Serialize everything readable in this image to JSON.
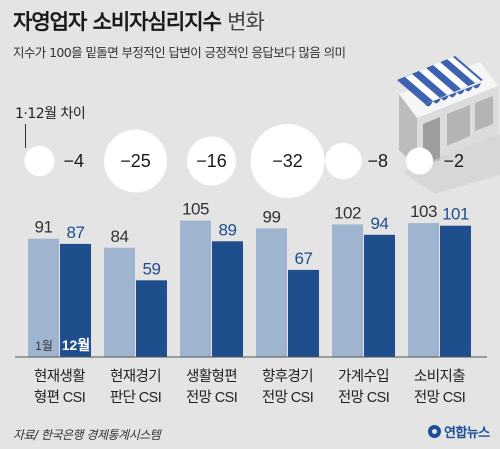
{
  "title": {
    "main": "자영업자 소비자심리지수",
    "suffix": "변화"
  },
  "subtitle": "지수가 100을 밑돌면 부정적인 답변이 긍정적인 응답보다 많음 의미",
  "diff_label": "1·12월 차이",
  "source": "자료/ 한국은행 경제통계시스템",
  "logo": "연합뉴스",
  "colors": {
    "jan": "#9fb5cf",
    "dec": "#1f4e8c",
    "text_dec": "#1f4e8c",
    "circle": "#ffffff"
  },
  "icons": [
    "shop-awning-icon"
  ],
  "chart_data": {
    "type": "bar",
    "categories": [
      "현재생활\n형편 CSI",
      "현재경기\n판단 CSI",
      "생활형편\n전망 CSI",
      "향후경기\n전망 CSI",
      "가계수입\n전망 CSI",
      "소비지출\n전망 CSI"
    ],
    "series": [
      {
        "name": "1월",
        "values": [
          91,
          84,
          105,
          99,
          102,
          103
        ]
      },
      {
        "name": "12월",
        "values": [
          87,
          59,
          89,
          67,
          94,
          101
        ]
      }
    ],
    "differences": [
      "−4",
      "−25",
      "−16",
      "−32",
      "−8",
      "−2"
    ],
    "diff_values": [
      -4,
      -25,
      -16,
      -32,
      -8,
      -2
    ],
    "legend": "inside-first-group",
    "grid": false
  }
}
